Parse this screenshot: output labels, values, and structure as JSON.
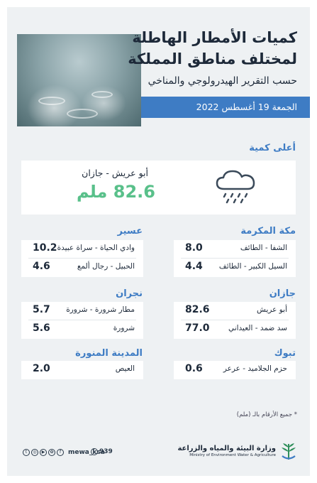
{
  "header": {
    "title_line1": "كميات الأمطار الهاطلة",
    "title_line2": "لمختلف مناطق المملكة",
    "subtitle": "حسب التقرير الهيدرولوجي والمناخي",
    "date": "الجمعة 19 أغسطس 2022"
  },
  "highest": {
    "label": "أعلى كمية",
    "place": "أبو عريش - جازان",
    "value": "82.6 ملم",
    "icon": "rain-cloud-icon"
  },
  "regions": [
    {
      "name": "مكة المكرمة",
      "stations": [
        {
          "name": "الشفا - الطائف",
          "value": "8.0"
        },
        {
          "name": "السيل الكبير - الطائف",
          "value": "4.4"
        }
      ]
    },
    {
      "name": "عسير",
      "stations": [
        {
          "name": "وادي الحياة - سراة عبيدة",
          "value": "10.2"
        },
        {
          "name": "الحبيل - رجال ألمع",
          "value": "4.6"
        }
      ]
    },
    {
      "name": "جازان",
      "stations": [
        {
          "name": "أبو عريش",
          "value": "82.6"
        },
        {
          "name": "سد ضمد - العيداني",
          "value": "77.0"
        }
      ]
    },
    {
      "name": "نجران",
      "stations": [
        {
          "name": "مطار شرورة - شرورة",
          "value": "5.7"
        },
        {
          "name": "شرورة",
          "value": "5.6"
        }
      ]
    },
    {
      "name": "تبوك",
      "stations": [
        {
          "name": "حزم الجلاميد - عرعر",
          "value": "0.6"
        }
      ]
    },
    {
      "name": "المدينة المنورة",
      "stations": [
        {
          "name": "العيص",
          "value": "2.0"
        }
      ]
    }
  ],
  "footnote": "* جميع الأرقام بالـ (ملم)",
  "footer": {
    "handle": "mewa_ksa",
    "phone": "939",
    "ministry_ar": "وزارة البيئة والمياه والزراعة",
    "ministry_en": "Ministry of Environment Water & Agriculture",
    "accent_color": "#3e7cc4",
    "highlight_color": "#59c08a"
  }
}
